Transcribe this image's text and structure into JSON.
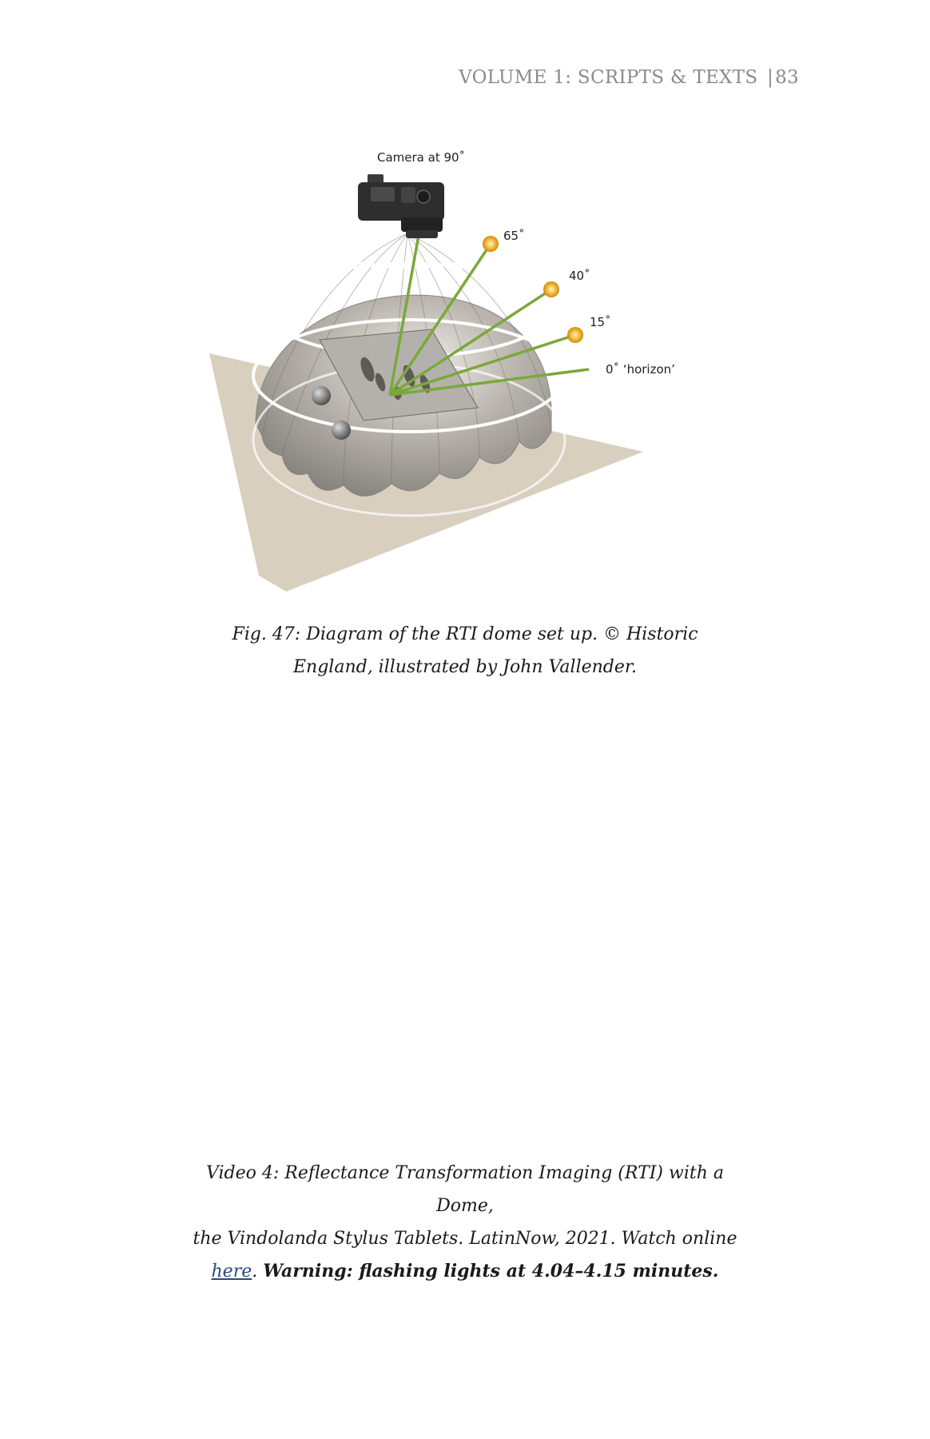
{
  "header": {
    "volume": "VOLUME 1:",
    "section": "SCRIPTS & TEXTS",
    "page_number": "83"
  },
  "figure": {
    "labels": {
      "camera": "Camera at 90˚",
      "a65": "65˚",
      "a40": "40˚",
      "a15": "15˚",
      "a0": "0˚ ‘horizon’"
    },
    "colors": {
      "platform": "#d8cfbf",
      "dome": "#a8a4a0",
      "rings": "#ffffff",
      "light_rays": "#7aa83a",
      "lights": "#f2b632",
      "camera": "#2a2a2a"
    }
  },
  "fig_caption": {
    "line1": "Fig. 47: Diagram of the RTI dome set up. © Historic",
    "line2": "England, illustrated by John Vallender."
  },
  "video_caption": {
    "line1": "Video 4: Reflectance Transformation Imaging (RTI) with a Dome,",
    "line2": "the Vindolanda Stylus Tablets. LatinNow, 2021. Watch online",
    "link_text": "here",
    "after_link": ".",
    "warning": "Warning: flashing lights at 4.04–4.15 minutes."
  }
}
